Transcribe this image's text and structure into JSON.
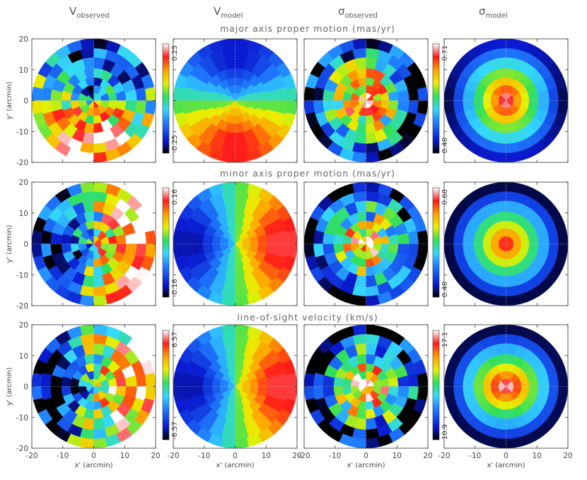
{
  "columns": [
    {
      "base": "V",
      "sub": "observed",
      "greek": false
    },
    {
      "base": "V",
      "sub": "model",
      "greek": false
    },
    {
      "base": "σ",
      "sub": "observed",
      "greek": true
    },
    {
      "base": "σ",
      "sub": "model",
      "greek": true
    }
  ],
  "rows": [
    {
      "title": "major axis proper motion (mas/yr)",
      "v_range": [
        "-0.25",
        "0.25"
      ],
      "sigma_range": [
        "0.48",
        "0.71"
      ]
    },
    {
      "title": "minor axis proper motion (mas/yr)",
      "v_range": [
        "-0.16",
        "0.16"
      ],
      "sigma_range": [
        "0.48",
        "0.68"
      ]
    },
    {
      "title": "line-of-sight velocity (km/s)",
      "v_range": [
        "-6.57",
        "6.57"
      ],
      "sigma_range": [
        "10.9",
        "17.1"
      ]
    }
  ],
  "axes": {
    "xlabel": "x' (arcmin)",
    "ylabel": "y' (arcmin)",
    "xticks": [
      "-20",
      "-10",
      "0",
      "10",
      "20"
    ],
    "yticks": [
      "-20",
      "-10",
      "0",
      "10",
      "20"
    ]
  },
  "chart_data": {
    "type": "heatmap",
    "description_kind": "polar-binned velocity maps, 3 rows x 4 columns",
    "xlim": [
      -20,
      20
    ],
    "ylim": [
      -20,
      20
    ],
    "radial_bins_arcmin": [
      0,
      2.5,
      5,
      7.5,
      10.5,
      14,
      17,
      20
    ],
    "colormap": "rainbow (black-blue-cyan-green-yellow-orange-red-white)",
    "panels": [
      {
        "row": 0,
        "col": 0,
        "kind": "v_observed"
      },
      {
        "row": 0,
        "col": 1,
        "kind": "v_model"
      },
      {
        "row": 0,
        "col": 2,
        "kind": "sigma_observed"
      },
      {
        "row": 0,
        "col": 3,
        "kind": "sigma_model"
      },
      {
        "row": 1,
        "col": 0,
        "kind": "v_observed"
      },
      {
        "row": 1,
        "col": 1,
        "kind": "v_model"
      },
      {
        "row": 1,
        "col": 2,
        "kind": "sigma_observed"
      },
      {
        "row": 1,
        "col": 3,
        "kind": "sigma_model"
      },
      {
        "row": 2,
        "col": 0,
        "kind": "v_observed"
      },
      {
        "row": 2,
        "col": 1,
        "kind": "v_model"
      },
      {
        "row": 2,
        "col": 2,
        "kind": "sigma_observed"
      },
      {
        "row": 2,
        "col": 3,
        "kind": "sigma_model"
      }
    ]
  }
}
